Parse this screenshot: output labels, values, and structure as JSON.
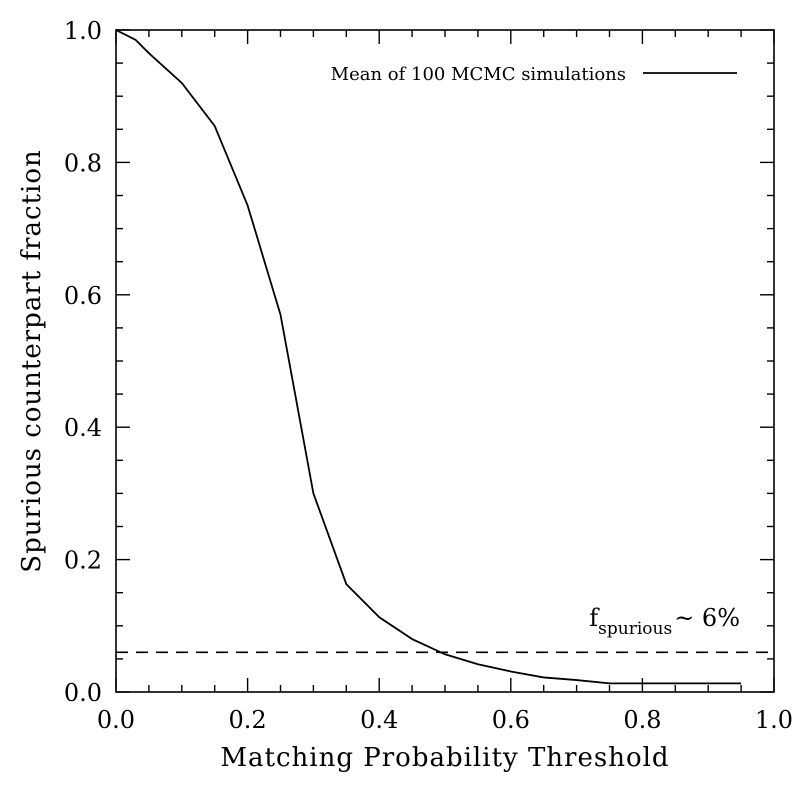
{
  "chart_data": {
    "type": "line",
    "title": "",
    "xlabel": "Matching Probability Threshold",
    "ylabel": "Spurious counterpart fraction",
    "xlim": [
      0.0,
      1.0
    ],
    "ylim": [
      0.0,
      1.0
    ],
    "x_ticks": [
      0.0,
      0.2,
      0.4,
      0.6,
      0.8,
      1.0
    ],
    "x_tick_labels": [
      "0.0",
      "0.2",
      "0.4",
      "0.6",
      "0.8",
      "1.0"
    ],
    "y_ticks": [
      0.0,
      0.2,
      0.4,
      0.6,
      0.8,
      1.0
    ],
    "y_tick_labels": [
      "0.0",
      "0.2",
      "0.4",
      "0.6",
      "0.8",
      "1.0"
    ],
    "grid": false,
    "legend_position": "top-right",
    "series": [
      {
        "name": "Mean of 100 MCMC simulations",
        "style": "solid",
        "x": [
          0.0,
          0.03,
          0.05,
          0.1,
          0.15,
          0.2,
          0.25,
          0.3,
          0.35,
          0.4,
          0.45,
          0.5,
          0.55,
          0.6,
          0.65,
          0.7,
          0.75,
          0.8,
          0.85,
          0.9,
          0.95
        ],
        "values": [
          1.0,
          0.985,
          0.965,
          0.92,
          0.855,
          0.735,
          0.57,
          0.3,
          0.163,
          0.113,
          0.08,
          0.057,
          0.042,
          0.031,
          0.022,
          0.018,
          0.013,
          0.013,
          0.013,
          0.013,
          0.013
        ]
      }
    ],
    "reference_lines": [
      {
        "orientation": "horizontal",
        "y": 0.06,
        "style": "dashed"
      }
    ],
    "annotation": {
      "prefix": "f",
      "subscript": "spurious",
      "suffix": "~ 6%"
    },
    "colors": {
      "line": "#000000",
      "axes": "#000000",
      "background": "#ffffff"
    }
  }
}
